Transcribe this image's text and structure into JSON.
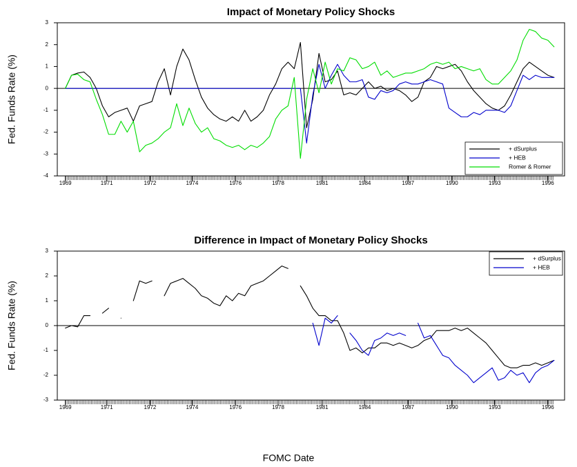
{
  "xlabel": "FOMC Date",
  "chart_data": [
    {
      "type": "line",
      "title": "Impact of Monetary Policy Shocks",
      "ylabel": "Fed. Funds Rate (%)",
      "xlim": [
        -1.3,
        80.7
      ],
      "ylim": [
        -4,
        3
      ],
      "yticks": [
        -4,
        -3,
        -2,
        -1,
        0,
        1,
        2,
        3
      ],
      "xticks": [
        {
          "value": 0,
          "label": "1969"
        },
        {
          "value": 6.7,
          "label": "1971"
        },
        {
          "value": 13.7,
          "label": "1972"
        },
        {
          "value": 20.5,
          "label": "1974"
        },
        {
          "value": 27.5,
          "label": "1976"
        },
        {
          "value": 34.4,
          "label": "1978"
        },
        {
          "value": 41.5,
          "label": "1981"
        },
        {
          "value": 48.4,
          "label": "1984"
        },
        {
          "value": 55.4,
          "label": "1987"
        },
        {
          "value": 62.5,
          "label": "1990"
        },
        {
          "value": 69.4,
          "label": "1993"
        },
        {
          "value": 78,
          "label": "1996"
        }
      ],
      "legend": "lower right",
      "x": [
        0,
        1,
        2,
        3,
        4,
        5,
        6,
        7,
        8,
        9,
        10,
        11,
        12,
        13,
        14,
        15,
        16,
        17,
        18,
        19,
        20,
        21,
        22,
        23,
        24,
        25,
        26,
        27,
        28,
        29,
        30,
        31,
        32,
        33,
        34,
        35,
        36,
        37,
        38,
        39,
        40,
        41,
        42,
        43,
        44,
        45,
        46,
        47,
        48,
        49,
        50,
        51,
        52,
        53,
        54,
        55,
        56,
        57,
        58,
        59,
        60,
        61,
        62,
        63,
        64,
        65,
        66,
        67,
        68,
        69,
        70,
        71,
        72,
        73,
        74,
        75,
        76,
        77,
        78,
        79
      ],
      "series": [
        {
          "name": "+ dSurplus",
          "color": "#000000",
          "values": [
            0,
            0.6,
            0.7,
            0.75,
            0.5,
            0,
            -0.8,
            -1.3,
            -1.1,
            -1.0,
            -0.9,
            -1.5,
            -0.8,
            -0.7,
            -0.6,
            0.3,
            0.9,
            -0.3,
            1.0,
            1.8,
            1.3,
            0.4,
            -0.4,
            -0.9,
            -1.2,
            -1.4,
            -1.5,
            -1.3,
            -1.5,
            -1.0,
            -1.5,
            -1.3,
            -1.0,
            -0.3,
            0.2,
            0.9,
            1.2,
            0.9,
            2.1,
            -1.8,
            -0.5,
            1.6,
            0.3,
            0.4,
            0.8,
            -0.3,
            -0.2,
            -0.3,
            0,
            0.3,
            0,
            0.1,
            -0.1,
            0,
            -0.1,
            -0.3,
            -0.6,
            -0.4,
            0.3,
            0.5,
            1.0,
            0.9,
            1.0,
            1.1,
            0.8,
            0.3,
            -0.1,
            -0.4,
            -0.7,
            -0.9,
            -1.0,
            -0.8,
            -0.3,
            0.3,
            0.9,
            1.2,
            1.0,
            0.8,
            0.6,
            0.5
          ]
        },
        {
          "name": "+ HEB",
          "color": "#0000cc",
          "values": [
            0,
            0,
            0,
            0,
            0,
            0,
            0,
            0,
            0,
            0,
            0,
            0,
            0,
            0,
            0,
            0,
            0,
            0,
            0,
            0,
            0,
            0,
            0,
            0,
            0,
            0,
            0,
            0,
            0,
            0,
            0,
            0,
            0,
            0,
            0,
            0,
            0,
            0,
            0,
            -2.5,
            -0.3,
            1.1,
            0,
            0.6,
            1.1,
            0.6,
            0.3,
            0.3,
            0.4,
            -0.4,
            -0.5,
            -0.1,
            -0.2,
            -0.1,
            0.2,
            0.3,
            0.2,
            0.2,
            0.3,
            0.4,
            0.3,
            0.2,
            -0.9,
            -1.1,
            -1.3,
            -1.3,
            -1.1,
            -1.2,
            -1.0,
            -1.0,
            -1.0,
            -1.1,
            -0.8,
            -0.1,
            0.6,
            0.4,
            0.6,
            0.5,
            0.5,
            0.5
          ]
        },
        {
          "name": "Romer & Romer",
          "color": "#00dd00",
          "values": [
            0,
            0.6,
            0.65,
            0.4,
            0.3,
            -0.5,
            -1.2,
            -2.1,
            -2.1,
            -1.5,
            -2.0,
            -1.5,
            -2.9,
            -2.6,
            -2.5,
            -2.3,
            -2.0,
            -1.8,
            -0.7,
            -1.7,
            -0.9,
            -1.6,
            -2.0,
            -1.8,
            -2.3,
            -2.4,
            -2.6,
            -2.7,
            -2.6,
            -2.8,
            -2.6,
            -2.7,
            -2.5,
            -2.2,
            -1.4,
            -1.0,
            -0.8,
            0.5,
            -3.2,
            -0.5,
            0.9,
            -0.2,
            1.2,
            0.2,
            0.9,
            0.8,
            1.4,
            1.3,
            0.9,
            1.0,
            1.2,
            0.6,
            0.8,
            0.5,
            0.6,
            0.7,
            0.7,
            0.8,
            0.9,
            1.1,
            1.2,
            1.1,
            1.2,
            0.9,
            1.0,
            0.9,
            0.8,
            0.9,
            0.4,
            0.2,
            0.2,
            0.5,
            0.8,
            1.3,
            2.2,
            2.7,
            2.6,
            2.3,
            2.2,
            1.9
          ]
        }
      ]
    },
    {
      "type": "line",
      "title": "Difference in Impact of Monetary Policy Shocks",
      "ylabel": "Fed. Funds Rate (%)",
      "xlim": [
        -1.3,
        80.7
      ],
      "ylim": [
        -3,
        3
      ],
      "yticks": [
        -3,
        -2,
        -1,
        0,
        1,
        2,
        3
      ],
      "xticks": [
        {
          "value": 0,
          "label": "1969"
        },
        {
          "value": 6.7,
          "label": "1971"
        },
        {
          "value": 13.7,
          "label": "1972"
        },
        {
          "value": 20.5,
          "label": "1974"
        },
        {
          "value": 27.5,
          "label": "1976"
        },
        {
          "value": 34.4,
          "label": "1978"
        },
        {
          "value": 41.5,
          "label": "1981"
        },
        {
          "value": 48.4,
          "label": "1984"
        },
        {
          "value": 55.4,
          "label": "1987"
        },
        {
          "value": 62.5,
          "label": "1990"
        },
        {
          "value": 69.4,
          "label": "1993"
        },
        {
          "value": 78,
          "label": "1996"
        }
      ],
      "legend": "upper right",
      "x": [
        0,
        1,
        2,
        3,
        4,
        5,
        6,
        7,
        8,
        9,
        10,
        11,
        12,
        13,
        14,
        15,
        16,
        17,
        18,
        19,
        20,
        21,
        22,
        23,
        24,
        25,
        26,
        27,
        28,
        29,
        30,
        31,
        32,
        33,
        34,
        35,
        36,
        37,
        38,
        39,
        40,
        41,
        42,
        43,
        44,
        45,
        46,
        47,
        48,
        49,
        50,
        51,
        52,
        53,
        54,
        55,
        56,
        57,
        58,
        59,
        60,
        61,
        62,
        63,
        64,
        65,
        66,
        67,
        68,
        69,
        70,
        71,
        72,
        73,
        74,
        75,
        76,
        77,
        78,
        79
      ],
      "series": [
        {
          "name": "+ dSurplus",
          "color": "#000000",
          "values": [
            -0.1,
            0,
            -0.05,
            0.4,
            0.4,
            null,
            0.5,
            0.7,
            null,
            0.3,
            null,
            1.0,
            1.8,
            1.7,
            1.8,
            null,
            1.2,
            1.7,
            1.8,
            1.9,
            1.7,
            1.5,
            1.2,
            1.1,
            0.9,
            0.8,
            1.2,
            1.0,
            1.3,
            1.2,
            1.6,
            1.7,
            1.8,
            2.0,
            2.2,
            2.4,
            2.3,
            null,
            1.6,
            1.2,
            0.7,
            0.4,
            0.4,
            0.2,
            0.2,
            -0.3,
            -1.0,
            -0.9,
            -1.1,
            -0.9,
            -0.9,
            -0.7,
            -0.7,
            -0.8,
            -0.7,
            -0.8,
            -0.9,
            -0.8,
            -0.6,
            -0.5,
            -0.2,
            -0.2,
            -0.2,
            -0.1,
            -0.2,
            -0.1,
            -0.3,
            -0.5,
            -0.7,
            -1.0,
            -1.3,
            -1.6,
            -1.7,
            -1.7,
            -1.6,
            -1.6,
            -1.5,
            -1.6,
            -1.5,
            -1.4
          ]
        },
        {
          "name": "+ HEB",
          "color": "#0000cc",
          "values": [
            null,
            null,
            null,
            null,
            null,
            null,
            null,
            null,
            null,
            null,
            null,
            null,
            null,
            null,
            null,
            null,
            null,
            null,
            null,
            null,
            null,
            null,
            null,
            null,
            null,
            null,
            null,
            null,
            null,
            null,
            null,
            null,
            null,
            null,
            null,
            null,
            null,
            null,
            null,
            null,
            0.1,
            -0.8,
            0.3,
            0.1,
            0.4,
            null,
            -0.3,
            -0.6,
            -1.0,
            -1.2,
            -0.6,
            -0.5,
            -0.3,
            -0.4,
            -0.3,
            -0.4,
            null,
            0.1,
            -0.5,
            -0.4,
            -0.8,
            -1.2,
            -1.3,
            -1.6,
            -1.8,
            -2.0,
            -2.3,
            -2.1,
            -1.9,
            -1.7,
            -2.2,
            -2.1,
            -1.8,
            -2.0,
            -1.9,
            -2.3,
            -1.9,
            -1.7,
            -1.6,
            -1.4
          ]
        }
      ]
    }
  ]
}
